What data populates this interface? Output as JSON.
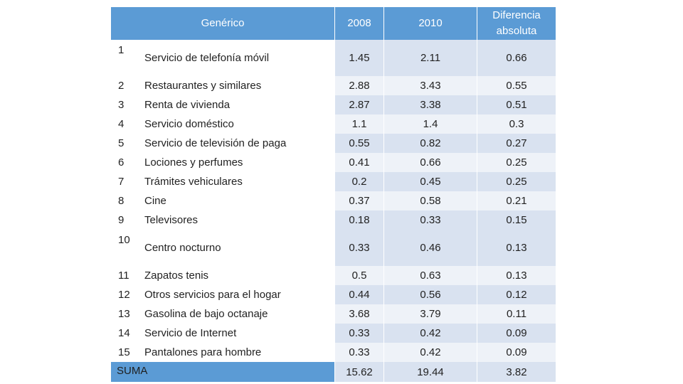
{
  "headers": {
    "generico": "Genérico",
    "y2008": "2008",
    "y2010": "2010",
    "diferencia_line1": "Diferencia",
    "diferencia_line2": "absoluta"
  },
  "rows": [
    {
      "num": "1",
      "name": "Servicio de telefonía móvil",
      "v2008": "1.45",
      "v2010": "2.11",
      "diff": "0.66"
    },
    {
      "num": "2",
      "name": "Restaurantes y similares",
      "v2008": "2.88",
      "v2010": "3.43",
      "diff": "0.55"
    },
    {
      "num": "3",
      "name": "Renta de vivienda",
      "v2008": "2.87",
      "v2010": "3.38",
      "diff": "0.51"
    },
    {
      "num": "4",
      "name": "Servicio doméstico",
      "v2008": "1.1",
      "v2010": "1.4",
      "diff": "0.3"
    },
    {
      "num": "5",
      "name": "Servicio de televisión de paga",
      "v2008": "0.55",
      "v2010": "0.82",
      "diff": "0.27"
    },
    {
      "num": "6",
      "name": "Lociones y perfumes",
      "v2008": "0.41",
      "v2010": "0.66",
      "diff": "0.25"
    },
    {
      "num": "7",
      "name": "Trámites vehiculares",
      "v2008": "0.2",
      "v2010": "0.45",
      "diff": "0.25"
    },
    {
      "num": "8",
      "name": "Cine",
      "v2008": "0.37",
      "v2010": "0.58",
      "diff": "0.21"
    },
    {
      "num": "9",
      "name": "Televisores",
      "v2008": "0.18",
      "v2010": "0.33",
      "diff": "0.15"
    },
    {
      "num": "10",
      "name": "Centro nocturno",
      "v2008": "0.33",
      "v2010": "0.46",
      "diff": "0.13"
    },
    {
      "num": "11",
      "name": "Zapatos tenis",
      "v2008": "0.5",
      "v2010": "0.63",
      "diff": "0.13"
    },
    {
      "num": "12",
      "name": "Otros servicios para el hogar",
      "v2008": "0.44",
      "v2010": "0.56",
      "diff": "0.12"
    },
    {
      "num": "13",
      "name": "Gasolina de bajo octanaje",
      "v2008": "3.68",
      "v2010": "3.79",
      "diff": "0.11"
    },
    {
      "num": "14",
      "name": "Servicio de Internet",
      "v2008": "0.33",
      "v2010": "0.42",
      "diff": "0.09"
    },
    {
      "num": "15",
      "name": "Pantalones para hombre",
      "v2008": "0.33",
      "v2010": "0.42",
      "diff": "0.09"
    }
  ],
  "total": {
    "label": "SUMA",
    "v2008": "15.62",
    "v2010": "19.44",
    "diff": "3.82"
  }
}
